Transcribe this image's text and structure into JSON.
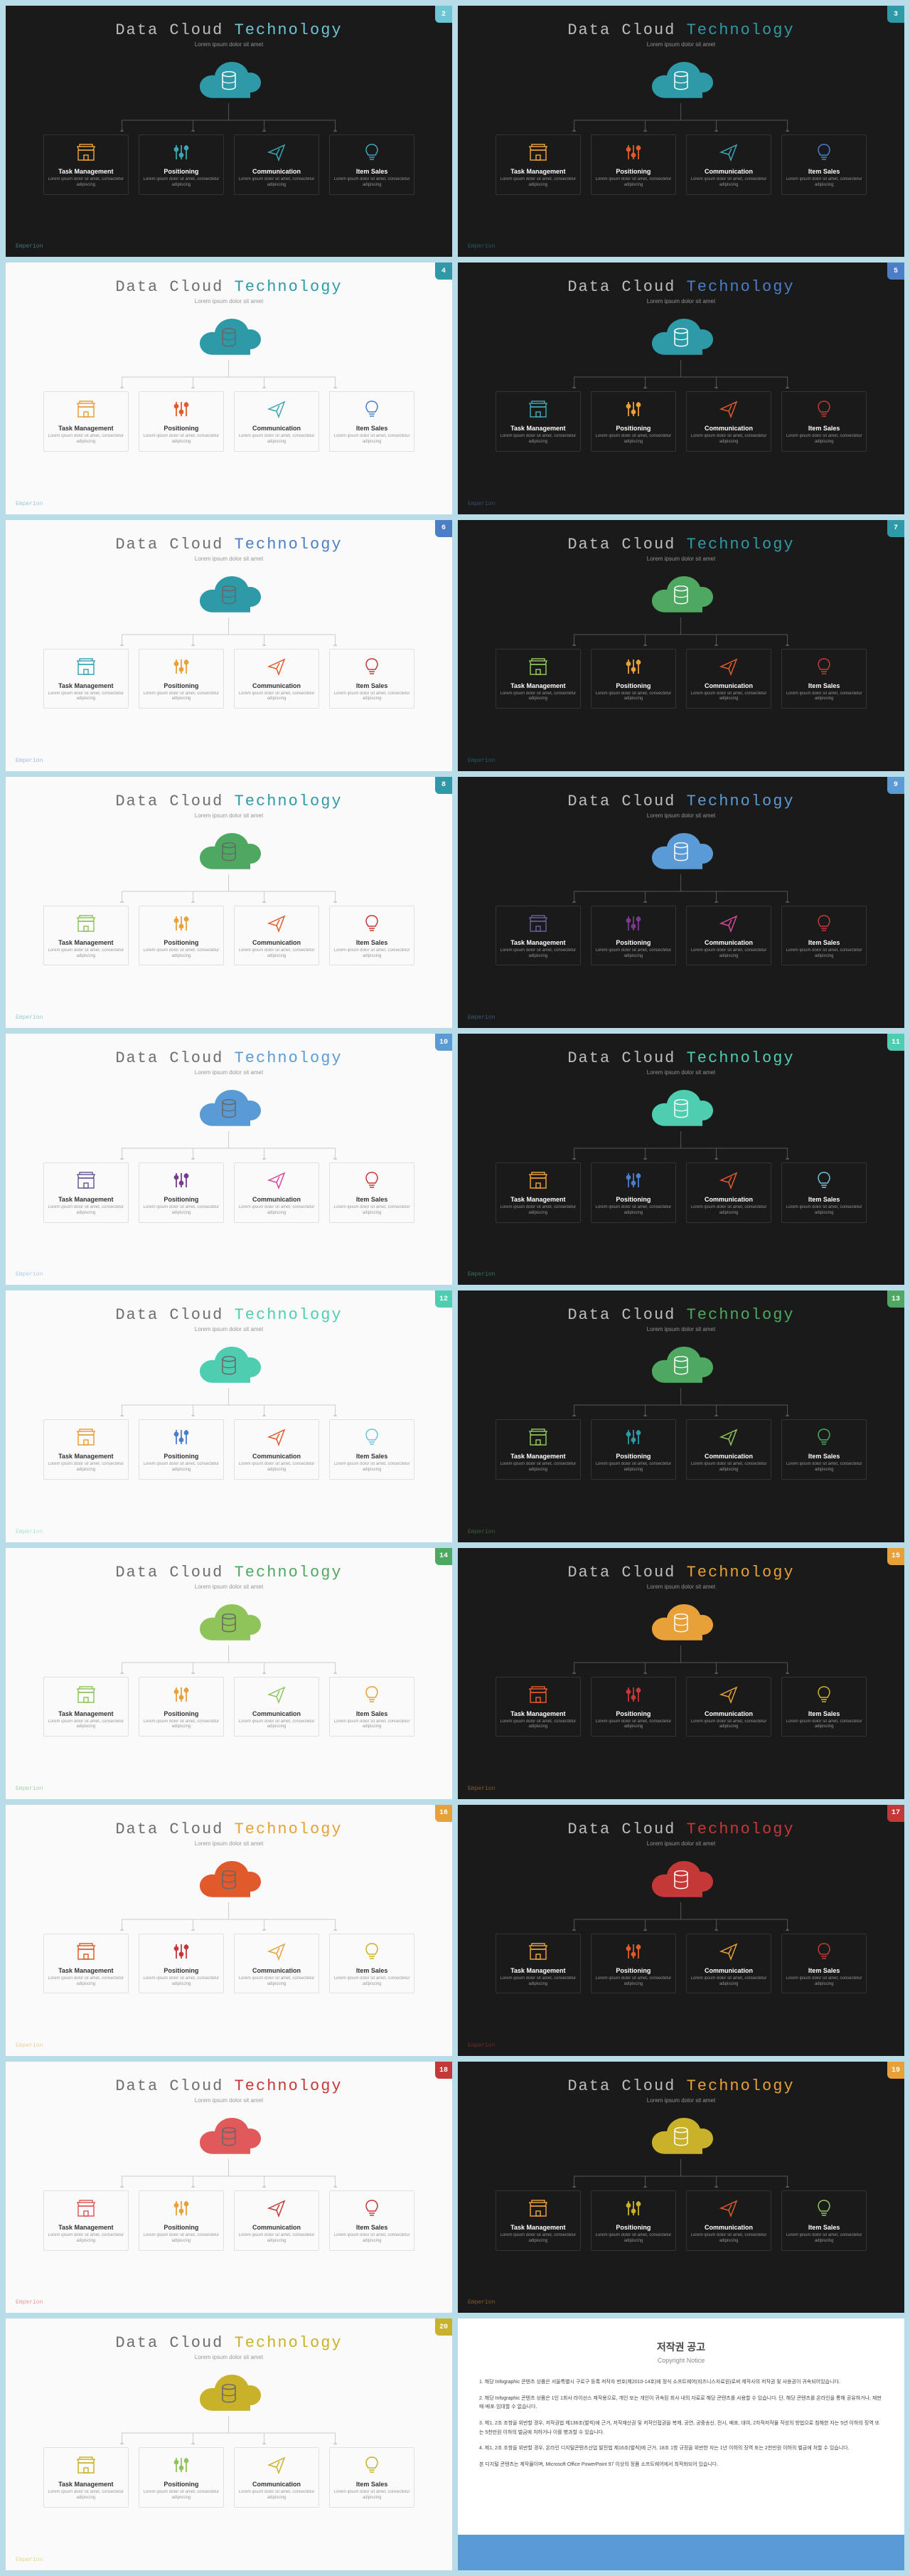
{
  "common": {
    "title_prefix": "Data Cloud ",
    "title_accent": "Technology",
    "subtitle": "Lorem ipsum dolor sit amet",
    "footer": "Emperion",
    "items": [
      {
        "name": "Task Management",
        "desc": "Lorem ipsum dolor sit amet, consectetur adipiscing"
      },
      {
        "name": "Positioning",
        "desc": "Lorem ipsum dolor sit amet, consectetur adipiscing"
      },
      {
        "name": "Communication",
        "desc": "Lorem ipsum dolor sit amet, consectetur adipiscing"
      },
      {
        "name": "Item Sales",
        "desc": "Lorem ipsum dolor sit amet, consectetur adipiscing"
      }
    ]
  },
  "slides": [
    {
      "num": 2,
      "bg": "dark",
      "accent": "#6ec5d4",
      "cloud": "#2e9aa8",
      "icons": [
        "#e8a038",
        "#3ea5b4",
        "#3ea5b4",
        "#3ea5b4"
      ],
      "badge": "#6ec5d4"
    },
    {
      "num": 3,
      "bg": "dark",
      "accent": "#2e9aa8",
      "cloud": "#2e9aa8",
      "icons": [
        "#e8a038",
        "#e05a2b",
        "#3ea5b4",
        "#4a7ec9"
      ],
      "badge": "#2e9aa8"
    },
    {
      "num": 4,
      "bg": "light",
      "accent": "#2e9aa8",
      "cloud": "#2e9aa8",
      "icons": [
        "#e8a038",
        "#e05a2b",
        "#3ea5b4",
        "#4a7ec9"
      ],
      "badge": "#2e9aa8"
    },
    {
      "num": 5,
      "bg": "dark",
      "accent": "#4a7ec9",
      "cloud": "#2e9aa8",
      "icons": [
        "#3ea5b4",
        "#e8a038",
        "#e05a2b",
        "#c43838"
      ],
      "badge": "#4a7ec9"
    },
    {
      "num": 6,
      "bg": "light",
      "accent": "#4a7ec9",
      "cloud": "#2e9aa8",
      "icons": [
        "#3ea5b4",
        "#e8a038",
        "#e05a2b",
        "#c43838"
      ],
      "badge": "#4a7ec9"
    },
    {
      "num": 7,
      "bg": "dark",
      "accent": "#2e9aa8",
      "cloud": "#4fa861",
      "icons": [
        "#8fc45a",
        "#e8a038",
        "#e05a2b",
        "#c43838"
      ],
      "badge": "#2e9aa8"
    },
    {
      "num": 8,
      "bg": "light",
      "accent": "#2e9aa8",
      "cloud": "#4fa861",
      "icons": [
        "#8fc45a",
        "#e8a038",
        "#e05a2b",
        "#c43838"
      ],
      "badge": "#2e9aa8"
    },
    {
      "num": 9,
      "bg": "dark",
      "accent": "#5b9bd5",
      "cloud": "#5b9bd5",
      "icons": [
        "#6b5b95",
        "#7a3a8f",
        "#d84a9c",
        "#c43838"
      ],
      "badge": "#5b9bd5"
    },
    {
      "num": 10,
      "bg": "light",
      "accent": "#5b9bd5",
      "cloud": "#5b9bd5",
      "icons": [
        "#6b5b95",
        "#7a3a8f",
        "#d84a9c",
        "#c43838"
      ],
      "badge": "#5b9bd5"
    },
    {
      "num": 11,
      "bg": "dark",
      "accent": "#4ecdb0",
      "cloud": "#4ecdb0",
      "icons": [
        "#e8a038",
        "#4a7ec9",
        "#e05a2b",
        "#6ec5d4"
      ],
      "badge": "#4ecdb0"
    },
    {
      "num": 12,
      "bg": "light",
      "accent": "#4ecdb0",
      "cloud": "#4ecdb0",
      "icons": [
        "#e8a038",
        "#4a7ec9",
        "#e05a2b",
        "#6ec5d4"
      ],
      "badge": "#4ecdb0"
    },
    {
      "num": 13,
      "bg": "dark",
      "accent": "#4fa861",
      "cloud": "#4fa861",
      "icons": [
        "#8fc45a",
        "#2e9aa8",
        "#8fc45a",
        "#4fa861"
      ],
      "badge": "#4fa861"
    },
    {
      "num": 14,
      "bg": "light",
      "accent": "#4fa861",
      "cloud": "#8fc45a",
      "icons": [
        "#8fc45a",
        "#e8a038",
        "#8fc45a",
        "#e8a038"
      ],
      "badge": "#4fa861"
    },
    {
      "num": 15,
      "bg": "dark",
      "accent": "#e8a038",
      "cloud": "#e8a038",
      "icons": [
        "#e05a2b",
        "#c43838",
        "#e8a038",
        "#c9b22a"
      ],
      "badge": "#e8a038"
    },
    {
      "num": 16,
      "bg": "light",
      "accent": "#e8a038",
      "cloud": "#e05a2b",
      "icons": [
        "#e05a2b",
        "#c43838",
        "#e8a038",
        "#c9b22a"
      ],
      "badge": "#e8a038"
    },
    {
      "num": 17,
      "bg": "dark",
      "accent": "#c43838",
      "cloud": "#c43838",
      "icons": [
        "#e8a038",
        "#e05a2b",
        "#e8a038",
        "#c43838"
      ],
      "badge": "#c43838"
    },
    {
      "num": 18,
      "bg": "light",
      "accent": "#c43838",
      "cloud": "#e05a5a",
      "icons": [
        "#e05a5a",
        "#e8a038",
        "#c43838",
        "#c43838"
      ],
      "badge": "#c43838"
    },
    {
      "num": 19,
      "bg": "dark",
      "accent": "#e8a038",
      "cloud": "#c9b22a",
      "icons": [
        "#e8a038",
        "#c9b22a",
        "#e05a2b",
        "#8fc45a"
      ],
      "badge": "#e8a038"
    },
    {
      "num": 20,
      "bg": "light",
      "accent": "#c9b22a",
      "cloud": "#c9b22a",
      "icons": [
        "#c9b22a",
        "#8fc45a",
        "#c9b22a",
        "#c9b22a"
      ],
      "badge": "#c9b22a"
    }
  ],
  "notice": {
    "title": "저작권 공고",
    "subtitle": "Copyright Notice",
    "paragraphs": [
      "1. 해당 Infographic 콘텐츠 상품은 서울특별시 구로구 등록 저작자 번호(제2010-14호)에 정식 소프트웨어(비즈니스자료원)로써 제작사의 저작권 및 사용권이 귀속되어있습니다.",
      "2. 해당 Infographic 콘텐츠 상품은 1인 1회사 라이선스 제작용으로, 개인 또는 개인이 귀속된 회사 내의 자료로 해당 콘텐츠를 사용할 수 있습니다. 단, 해당 콘텐츠를 온라인을 통해 공유하거나, 재판매·배포·임대할 수 없습니다.",
      "3. 제1, 2조 조항을 위반할 경우, 저작권법 제136조(벌칙)에 근거, 저작재산권 및 저작인접권을 복제, 공연, 공중송신, 전시, 배포, 대여, 2차적저작물 작성의 방법으로 침해한 자는 5년 이하의 징역 또는 5천만원 이하의 벌금에 처하거나 이를 병과할 수 있습니다.",
      "4. 제1, 2조 조항을 위반할 경우, 온라인 디지털콘텐츠산업 발전법 제16조(벌칙)에 근거, 18조 1항 규정을 위반한 자는 1년 이하의 징역 또는 2천만원 이하의 벌금에 처할 수 있습니다.",
      "본 디지털 콘텐츠는 제작물이며, Microsoft Office PowerPoint 97 이상의 정품 소프트웨어에서 최적화되어 있습니다."
    ]
  }
}
